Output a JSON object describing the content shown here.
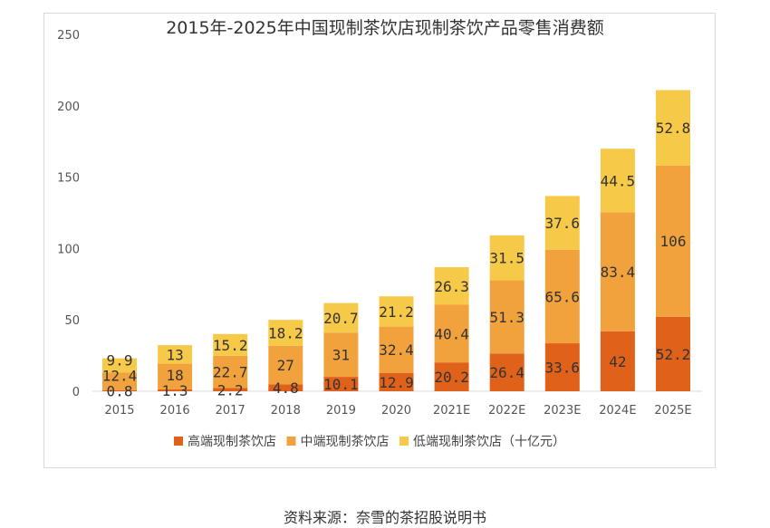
{
  "source": "资料来源：奈雪的茶招股说明书",
  "chart_data": {
    "type": "bar",
    "stacked": true,
    "title": "2015年-2025年中国现制茶饮店现制茶饮产品零售消费额",
    "unit": "（十亿元）",
    "categories": [
      "2015",
      "2016",
      "2017",
      "2018",
      "2019",
      "2020",
      "2021E",
      "2022E",
      "2023E",
      "2024E",
      "2025E"
    ],
    "series": [
      {
        "name": "高端现制茶饮店",
        "color": "#E0611A",
        "values": [
          0.8,
          1.3,
          2.2,
          4.8,
          10.1,
          12.9,
          20.2,
          26.4,
          33.6,
          42,
          52.2
        ],
        "labels": [
          "0.8",
          "1.3",
          "2.2",
          "4.8",
          "10.1",
          "12.9",
          "20.2",
          "26.4",
          "33.6",
          "42",
          "52.2"
        ]
      },
      {
        "name": "中端现制茶饮店",
        "color": "#F2A23C",
        "values": [
          12.4,
          18,
          22.7,
          27,
          31,
          32.4,
          40.4,
          51.3,
          65.6,
          83.4,
          106
        ],
        "labels": [
          "12.4",
          "18",
          "22.7",
          "27",
          "31",
          "32.4",
          "40.4",
          "51.3",
          "65.6",
          "83.4",
          "106"
        ]
      },
      {
        "name": "低端现制茶饮店",
        "color": "#F7C948",
        "values": [
          9.9,
          13,
          15.2,
          18.2,
          20.7,
          21.2,
          26.3,
          31.5,
          37.6,
          44.5,
          52.8
        ],
        "labels": [
          "9.9",
          "13",
          "15.2",
          "18.2",
          "20.7",
          "21.2",
          "26.3",
          "31.5",
          "37.6",
          "44.5",
          "52.8"
        ]
      }
    ],
    "ylim": [
      0,
      250
    ],
    "yticks": [
      "0",
      "50",
      "100",
      "150",
      "200",
      "250"
    ],
    "grid": false,
    "legend": "bottom"
  }
}
